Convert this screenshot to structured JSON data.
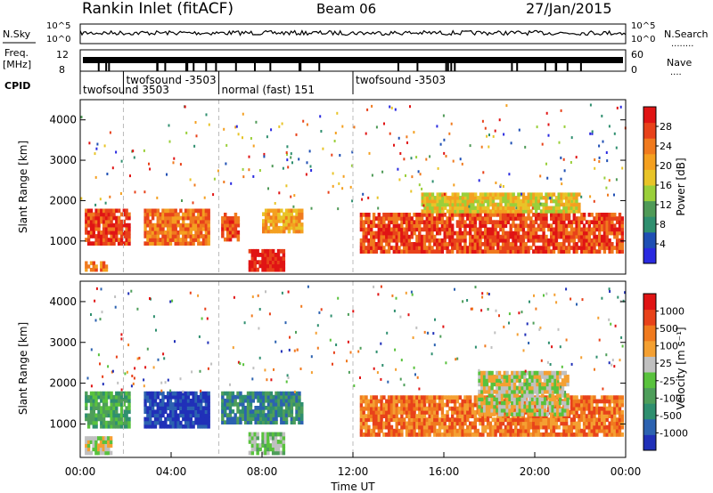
{
  "header": {
    "station": "Rankin Inlet (fitACF)",
    "beam": "Beam 06",
    "date": "27/Jan/2015"
  },
  "noise_panel": {
    "left_label": "N.Sky",
    "right_label": "N.Search",
    "right_dots": "........",
    "ticks_top": "10^5",
    "ticks_bottom": "10^0"
  },
  "freq_panel": {
    "left_label_1": "Freq.",
    "left_label_2": "[MHz]",
    "right_label": "Nave",
    "right_dots": "....",
    "left_ticks": [
      "12",
      "8"
    ],
    "right_ticks": [
      "60",
      "0"
    ]
  },
  "cpid": {
    "label": "CPID",
    "entries": [
      {
        "text": "twofsound 3503",
        "start": 0.0,
        "row": 2
      },
      {
        "text": "twofsound -3503",
        "start": 1.9,
        "row": 1
      },
      {
        "text": "normal (fast) 151",
        "start": 6.1,
        "row": 2
      },
      {
        "text": "twofsound -3503",
        "start": 12.0,
        "row": 1
      }
    ]
  },
  "x_axis": {
    "title": "Time UT",
    "ticks": [
      "00:00",
      "04:00",
      "08:00",
      "12:00",
      "16:00",
      "20:00",
      "00:00"
    ],
    "tick_hours": [
      0,
      4,
      8,
      12,
      16,
      20,
      24
    ]
  },
  "power_panel": {
    "ylabel": "Slant Range [km]",
    "yticks": [
      "1000",
      "2000",
      "3000",
      "4000"
    ],
    "colorbar_title": "Power [dB]",
    "colorbar_ticks": [
      "4",
      "8",
      "12",
      "16",
      "20",
      "24",
      "28"
    ],
    "colors": [
      "#2a2ae0",
      "#1f4fb4",
      "#2f8f6f",
      "#4f9a57",
      "#9acf3a",
      "#e8c428",
      "#f4a020",
      "#f07a1e",
      "#e8421a",
      "#e01414"
    ]
  },
  "velocity_panel": {
    "ylabel": "Slant Range [km]",
    "yticks": [
      "1000",
      "2000",
      "3000",
      "4000"
    ],
    "colorbar_title": "Velocity [m s⁻¹]",
    "colorbar_ticks": [
      "1000",
      "500",
      "100",
      "25",
      "-25",
      "-100",
      "-500",
      "-1000"
    ],
    "colors": [
      "#2030b8",
      "#2c62b0",
      "#2f8f6f",
      "#4e9e5a",
      "#59c23d",
      "#c0c0c0",
      "#f4a032",
      "#f07a1e",
      "#e8421a",
      "#e01414"
    ]
  },
  "chart_data": {
    "type": "heatmap",
    "x_range_hours": [
      0,
      24
    ],
    "y_range_km": [
      180,
      4500
    ],
    "grid": false,
    "dashed_time_markers_hours": [
      1.9,
      6.1,
      12.0
    ],
    "power_regions": [
      {
        "t0": 0.2,
        "t1": 2.2,
        "r0": 900,
        "r1": 1800,
        "level": 8
      },
      {
        "t0": 0.2,
        "t1": 1.2,
        "r0": 250,
        "r1": 500,
        "level": 7
      },
      {
        "t0": 2.8,
        "t1": 5.7,
        "r0": 900,
        "r1": 1800,
        "level": 7
      },
      {
        "t0": 6.2,
        "t1": 7.0,
        "r0": 1000,
        "r1": 1700,
        "level": 8
      },
      {
        "t0": 7.4,
        "t1": 9.0,
        "r0": 250,
        "r1": 800,
        "level": 9
      },
      {
        "t0": 8.0,
        "t1": 9.8,
        "r0": 1200,
        "r1": 1800,
        "level": 6
      },
      {
        "t0": 12.3,
        "t1": 23.9,
        "r0": 700,
        "r1": 1700,
        "level": 8
      },
      {
        "t0": 15.0,
        "t1": 22.0,
        "r0": 1700,
        "r1": 2200,
        "level": 5
      }
    ],
    "velocity_regions": [
      {
        "t0": 0.2,
        "t1": 2.2,
        "r0": 900,
        "r1": 1800,
        "level": 3
      },
      {
        "t0": 0.2,
        "t1": 1.4,
        "r0": 250,
        "r1": 700,
        "level": 5
      },
      {
        "t0": 2.8,
        "t1": 5.7,
        "r0": 900,
        "r1": 1800,
        "level": 0
      },
      {
        "t0": 6.2,
        "t1": 9.8,
        "r0": 1000,
        "r1": 1800,
        "level": 2
      },
      {
        "t0": 7.4,
        "t1": 9.0,
        "r0": 250,
        "r1": 800,
        "level": 4
      },
      {
        "t0": 12.3,
        "t1": 23.9,
        "r0": 700,
        "r1": 1700,
        "level": 7
      },
      {
        "t0": 17.5,
        "t1": 21.5,
        "r0": 1200,
        "r1": 2300,
        "level": 5
      }
    ]
  }
}
